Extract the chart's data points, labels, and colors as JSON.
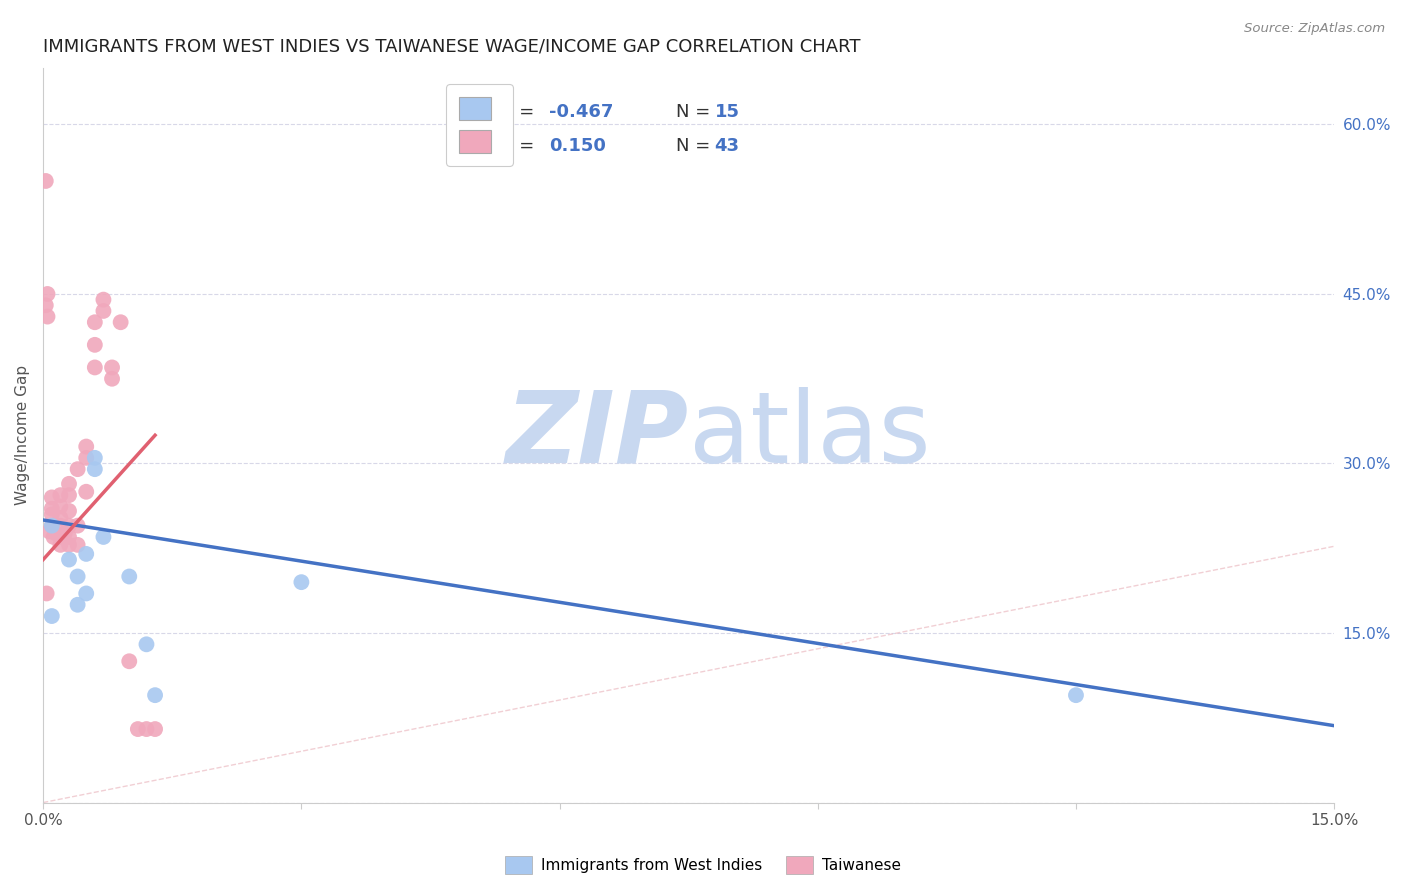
{
  "title": "IMMIGRANTS FROM WEST INDIES VS TAIWANESE WAGE/INCOME GAP CORRELATION CHART",
  "source": "Source: ZipAtlas.com",
  "ylabel": "Wage/Income Gap",
  "xmin": 0.0,
  "xmax": 0.15,
  "ymin": 0.0,
  "ymax": 0.65,
  "color_blue": "#a8c8f0",
  "color_pink": "#f0a8bc",
  "color_blue_line": "#4472c4",
  "color_pink_line": "#e06070",
  "color_ref_line": "#e8b0b8",
  "watermark_zip": "ZIP",
  "watermark_atlas": "atlas",
  "watermark_color_zip": "#c8d8f0",
  "watermark_color_atlas": "#c8d8f0",
  "blue_dots_x": [
    0.001,
    0.003,
    0.004,
    0.004,
    0.005,
    0.005,
    0.006,
    0.006,
    0.007,
    0.01,
    0.012,
    0.013,
    0.03,
    0.12,
    0.001
  ],
  "blue_dots_y": [
    0.245,
    0.215,
    0.175,
    0.2,
    0.22,
    0.185,
    0.295,
    0.305,
    0.235,
    0.2,
    0.14,
    0.095,
    0.195,
    0.095,
    0.165
  ],
  "pink_dots_x": [
    0.0003,
    0.0005,
    0.0005,
    0.0007,
    0.001,
    0.001,
    0.001,
    0.001,
    0.0012,
    0.0015,
    0.002,
    0.002,
    0.002,
    0.002,
    0.002,
    0.002,
    0.0025,
    0.003,
    0.003,
    0.003,
    0.003,
    0.003,
    0.003,
    0.004,
    0.004,
    0.004,
    0.005,
    0.005,
    0.005,
    0.006,
    0.006,
    0.006,
    0.007,
    0.007,
    0.008,
    0.008,
    0.009,
    0.01,
    0.011,
    0.012,
    0.013,
    0.0003,
    0.0004
  ],
  "pink_dots_y": [
    0.44,
    0.43,
    0.45,
    0.24,
    0.245,
    0.255,
    0.26,
    0.27,
    0.235,
    0.238,
    0.228,
    0.235,
    0.245,
    0.252,
    0.262,
    0.272,
    0.238,
    0.228,
    0.235,
    0.245,
    0.258,
    0.272,
    0.282,
    0.228,
    0.245,
    0.295,
    0.275,
    0.305,
    0.315,
    0.385,
    0.405,
    0.425,
    0.435,
    0.445,
    0.375,
    0.385,
    0.425,
    0.125,
    0.065,
    0.065,
    0.065,
    0.55,
    0.185
  ],
  "blue_line_x": [
    0.0,
    0.15
  ],
  "blue_line_y": [
    0.25,
    0.068
  ],
  "pink_line_x": [
    0.0,
    0.013
  ],
  "pink_line_y": [
    0.215,
    0.325
  ],
  "ref_line_x": [
    0.0,
    0.43
  ],
  "ref_line_y": [
    0.0,
    0.65
  ],
  "grid_color": "#d8d8e8",
  "title_fontsize": 13,
  "axis_fontsize": 11,
  "legend_fontsize": 13,
  "dot_size": 130
}
